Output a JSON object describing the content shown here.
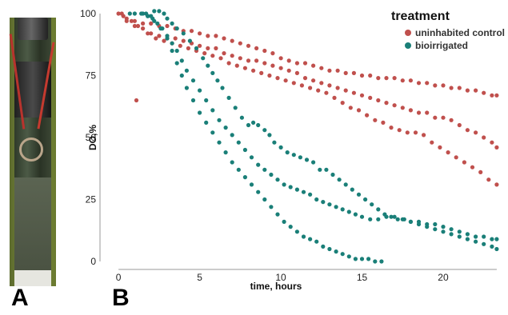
{
  "panels": {
    "a_label": "A",
    "b_label": "B"
  },
  "photo": {
    "description_icon": "sediment-core-photo"
  },
  "chart_data": {
    "type": "scatter",
    "xlabel": "time, hours",
    "ylabel": "DO,%",
    "xlim": [
      -0.5,
      23.5
    ],
    "ylim": [
      0,
      100
    ],
    "xticks": [
      0,
      5,
      10,
      15,
      20
    ],
    "yticks": [
      0,
      25,
      50,
      75,
      100
    ],
    "grid": false,
    "legend": {
      "title": "treatment",
      "position": "top-right"
    },
    "series": [
      {
        "name": "uninhabited control",
        "color": "#c0504d",
        "points": [
          [
            0,
            100
          ],
          [
            0.2,
            100
          ],
          [
            0.5,
            98
          ],
          [
            1,
            97
          ],
          [
            1.5,
            96
          ],
          [
            2,
            96
          ],
          [
            2.5,
            95
          ],
          [
            3,
            95
          ],
          [
            3.5,
            94
          ],
          [
            4,
            93
          ],
          [
            4.5,
            93
          ],
          [
            5,
            92
          ],
          [
            5.5,
            91
          ],
          [
            6,
            91
          ],
          [
            6.5,
            90
          ],
          [
            7,
            89
          ],
          [
            7.5,
            88
          ],
          [
            8,
            87
          ],
          [
            8.5,
            86
          ],
          [
            9,
            85
          ],
          [
            9.5,
            84
          ],
          [
            10,
            82
          ],
          [
            10.5,
            81
          ],
          [
            11,
            80
          ],
          [
            11.5,
            80
          ],
          [
            12,
            79
          ],
          [
            12.5,
            78
          ],
          [
            13,
            77
          ],
          [
            13.5,
            77
          ],
          [
            14,
            76
          ],
          [
            14.5,
            76
          ],
          [
            15,
            75
          ],
          [
            15.5,
            75
          ],
          [
            16,
            74
          ],
          [
            16.5,
            74
          ],
          [
            17,
            74
          ],
          [
            17.5,
            73
          ],
          [
            18,
            73
          ],
          [
            18.5,
            72
          ],
          [
            19,
            72
          ],
          [
            19.5,
            71
          ],
          [
            20,
            71
          ],
          [
            20.5,
            70
          ],
          [
            21,
            70
          ],
          [
            21.5,
            69
          ],
          [
            22,
            69
          ],
          [
            22.5,
            68
          ],
          [
            23,
            67
          ],
          [
            23.3,
            67
          ],
          [
            0.5,
            97
          ],
          [
            1,
            95
          ],
          [
            1.5,
            94
          ],
          [
            2,
            92
          ],
          [
            2.5,
            91
          ],
          [
            3,
            90
          ],
          [
            3.5,
            90
          ],
          [
            4,
            89
          ],
          [
            4.5,
            88
          ],
          [
            5,
            87
          ],
          [
            5.5,
            86
          ],
          [
            6,
            86
          ],
          [
            6.5,
            84
          ],
          [
            7,
            83
          ],
          [
            7.5,
            82
          ],
          [
            8,
            81
          ],
          [
            8.5,
            81
          ],
          [
            9,
            80
          ],
          [
            9.5,
            79
          ],
          [
            10,
            78
          ],
          [
            10.5,
            77
          ],
          [
            11,
            76
          ],
          [
            11.5,
            74
          ],
          [
            12,
            73
          ],
          [
            12.5,
            72
          ],
          [
            13,
            71
          ],
          [
            13.5,
            70
          ],
          [
            14,
            69
          ],
          [
            14.5,
            68
          ],
          [
            15,
            67
          ],
          [
            15.5,
            66
          ],
          [
            16,
            65
          ],
          [
            16.5,
            64
          ],
          [
            17,
            63
          ],
          [
            17.5,
            62
          ],
          [
            18,
            61
          ],
          [
            18.5,
            60
          ],
          [
            19,
            60
          ],
          [
            19.5,
            58
          ],
          [
            20,
            58
          ],
          [
            20.5,
            57
          ],
          [
            21,
            55
          ],
          [
            21.5,
            53
          ],
          [
            22,
            52
          ],
          [
            22.5,
            50
          ],
          [
            23,
            48
          ],
          [
            23.3,
            46
          ],
          [
            0.3,
            99
          ],
          [
            0.8,
            97
          ],
          [
            1.2,
            95
          ],
          [
            1.8,
            92
          ],
          [
            2.3,
            90
          ],
          [
            2.8,
            89
          ],
          [
            3.3,
            88
          ],
          [
            3.8,
            87
          ],
          [
            4.3,
            86
          ],
          [
            4.8,
            85
          ],
          [
            5.3,
            84
          ],
          [
            5.8,
            83
          ],
          [
            6.3,
            82
          ],
          [
            6.8,
            80
          ],
          [
            7.3,
            79
          ],
          [
            7.8,
            78
          ],
          [
            8.3,
            77
          ],
          [
            8.8,
            76
          ],
          [
            9.3,
            75
          ],
          [
            9.8,
            74
          ],
          [
            10.3,
            73
          ],
          [
            10.8,
            72
          ],
          [
            11.3,
            71
          ],
          [
            11.8,
            70
          ],
          [
            12.3,
            69
          ],
          [
            12.8,
            68
          ],
          [
            13.3,
            66
          ],
          [
            13.8,
            64
          ],
          [
            14.3,
            62
          ],
          [
            14.8,
            61
          ],
          [
            15.3,
            59
          ],
          [
            15.8,
            57
          ],
          [
            16.3,
            56
          ],
          [
            16.8,
            54
          ],
          [
            17.3,
            53
          ],
          [
            17.8,
            52
          ],
          [
            18.3,
            52
          ],
          [
            18.8,
            51
          ],
          [
            19.3,
            48
          ],
          [
            19.8,
            46
          ],
          [
            20.3,
            44
          ],
          [
            20.8,
            42
          ],
          [
            21.3,
            40
          ],
          [
            21.8,
            38
          ],
          [
            22.3,
            36
          ],
          [
            22.8,
            33
          ],
          [
            23.3,
            31
          ],
          [
            1.1,
            65
          ]
        ]
      },
      {
        "name": "bioirrigated",
        "color": "#1a7f78",
        "points": [
          [
            0.7,
            100
          ],
          [
            1,
            100
          ],
          [
            1.4,
            100
          ],
          [
            1.7,
            100
          ],
          [
            2,
            99
          ],
          [
            2.2,
            101
          ],
          [
            2.5,
            101
          ],
          [
            2.8,
            100
          ],
          [
            3,
            98
          ],
          [
            3.3,
            96
          ],
          [
            3.6,
            94
          ],
          [
            4,
            92
          ],
          [
            4.4,
            89
          ],
          [
            4.8,
            86
          ],
          [
            5.2,
            82
          ],
          [
            5.5,
            79
          ],
          [
            5.8,
            76
          ],
          [
            6.1,
            73
          ],
          [
            6.4,
            70
          ],
          [
            6.8,
            66
          ],
          [
            7.2,
            62
          ],
          [
            7.6,
            58
          ],
          [
            8,
            55
          ],
          [
            8.3,
            56
          ],
          [
            8.6,
            55
          ],
          [
            9,
            53
          ],
          [
            9.3,
            51
          ],
          [
            9.6,
            48
          ],
          [
            10,
            46
          ],
          [
            10.4,
            44
          ],
          [
            10.8,
            43
          ],
          [
            11.2,
            42
          ],
          [
            11.6,
            41
          ],
          [
            12,
            40
          ],
          [
            12.4,
            37
          ],
          [
            12.8,
            37
          ],
          [
            13.2,
            35
          ],
          [
            13.6,
            33
          ],
          [
            14,
            31
          ],
          [
            14.4,
            29
          ],
          [
            14.8,
            27
          ],
          [
            15.2,
            25
          ],
          [
            15.6,
            23
          ],
          [
            16,
            21
          ],
          [
            16.4,
            19
          ],
          [
            16.8,
            18
          ],
          [
            17.2,
            17
          ],
          [
            17.6,
            17
          ],
          [
            18,
            16
          ],
          [
            18.5,
            16
          ],
          [
            19,
            15
          ],
          [
            19.5,
            15
          ],
          [
            20,
            14
          ],
          [
            20.5,
            13
          ],
          [
            21,
            12
          ],
          [
            21.5,
            11
          ],
          [
            22,
            10
          ],
          [
            22.5,
            10
          ],
          [
            23,
            9
          ],
          [
            23.3,
            9
          ],
          [
            1.5,
            100
          ],
          [
            1.8,
            99
          ],
          [
            2.1,
            98
          ],
          [
            2.4,
            96
          ],
          [
            2.7,
            94
          ],
          [
            3,
            91
          ],
          [
            3.3,
            88
          ],
          [
            3.6,
            85
          ],
          [
            3.9,
            81
          ],
          [
            4.2,
            77
          ],
          [
            4.6,
            73
          ],
          [
            5,
            69
          ],
          [
            5.4,
            65
          ],
          [
            5.8,
            61
          ],
          [
            6.2,
            57
          ],
          [
            6.6,
            54
          ],
          [
            7,
            51
          ],
          [
            7.4,
            48
          ],
          [
            7.8,
            45
          ],
          [
            8.2,
            42
          ],
          [
            8.6,
            39
          ],
          [
            9,
            37
          ],
          [
            9.4,
            35
          ],
          [
            9.8,
            33
          ],
          [
            10.2,
            31
          ],
          [
            10.6,
            30
          ],
          [
            11,
            29
          ],
          [
            11.4,
            28
          ],
          [
            11.8,
            27
          ],
          [
            12.2,
            25
          ],
          [
            12.6,
            24
          ],
          [
            13,
            23
          ],
          [
            13.4,
            22
          ],
          [
            13.8,
            21
          ],
          [
            14.2,
            20
          ],
          [
            14.6,
            19
          ],
          [
            15,
            18
          ],
          [
            15.5,
            17
          ],
          [
            16,
            17
          ],
          [
            16.5,
            18
          ],
          [
            17,
            18
          ],
          [
            17.5,
            17
          ],
          [
            18,
            16
          ],
          [
            18.5,
            15
          ],
          [
            19,
            14
          ],
          [
            19.5,
            13
          ],
          [
            20,
            12
          ],
          [
            20.5,
            11
          ],
          [
            21,
            10
          ],
          [
            21.5,
            9
          ],
          [
            22,
            8
          ],
          [
            22.5,
            7
          ],
          [
            23,
            6
          ],
          [
            23.3,
            5
          ],
          [
            1.8,
            99
          ],
          [
            2.2,
            97
          ],
          [
            2.6,
            94
          ],
          [
            3,
            90
          ],
          [
            3.3,
            85
          ],
          [
            3.6,
            80
          ],
          [
            3.9,
            75
          ],
          [
            4.2,
            70
          ],
          [
            4.6,
            65
          ],
          [
            5,
            60
          ],
          [
            5.4,
            56
          ],
          [
            5.8,
            52
          ],
          [
            6.2,
            48
          ],
          [
            6.6,
            44
          ],
          [
            7,
            40
          ],
          [
            7.4,
            37
          ],
          [
            7.8,
            34
          ],
          [
            8.2,
            31
          ],
          [
            8.6,
            28
          ],
          [
            9,
            25
          ],
          [
            9.4,
            22
          ],
          [
            9.8,
            19
          ],
          [
            10.2,
            16
          ],
          [
            10.6,
            14
          ],
          [
            11,
            12
          ],
          [
            11.4,
            10
          ],
          [
            11.8,
            9
          ],
          [
            12.2,
            8
          ],
          [
            12.6,
            6
          ],
          [
            13,
            5
          ],
          [
            13.4,
            4
          ],
          [
            13.8,
            3
          ],
          [
            14.2,
            2
          ],
          [
            14.6,
            1
          ],
          [
            15,
            1
          ],
          [
            15.4,
            1
          ],
          [
            15.8,
            0
          ],
          [
            16.2,
            0
          ]
        ]
      }
    ]
  }
}
